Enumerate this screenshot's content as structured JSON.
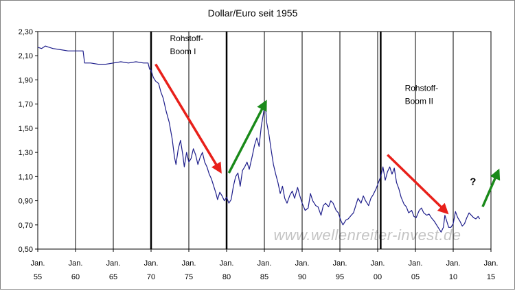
{
  "chart_data": {
    "type": "line",
    "title": "Dollar/Euro seit 1955",
    "xlabel": "",
    "ylabel": "",
    "xlim": [
      1955,
      2015
    ],
    "ylim": [
      0.5,
      2.3
    ],
    "grid": {
      "vertical": true,
      "horizontal": false
    },
    "y_ticks": [
      "0,50",
      "0,70",
      "0,90",
      "1,10",
      "1,30",
      "1,50",
      "1,70",
      "1,90",
      "2,10",
      "2,30"
    ],
    "x_ticks": [
      {
        "year": 1955,
        "line1": "Jan.",
        "line2": "55"
      },
      {
        "year": 1960,
        "line1": "Jan.",
        "line2": "60"
      },
      {
        "year": 1965,
        "line1": "Jan.",
        "line2": "65"
      },
      {
        "year": 1970,
        "line1": "Jan.",
        "line2": "70"
      },
      {
        "year": 1975,
        "line1": "Jan.",
        "line2": "75"
      },
      {
        "year": 1980,
        "line1": "Jan.",
        "line2": "80"
      },
      {
        "year": 1985,
        "line1": "Jan.",
        "line2": "85"
      },
      {
        "year": 1990,
        "line1": "Jan.",
        "line2": "90"
      },
      {
        "year": 1995,
        "line1": "Jan.",
        "line2": "95"
      },
      {
        "year": 2000,
        "line1": "Jan.",
        "line2": "00"
      },
      {
        "year": 2005,
        "line1": "Jan.",
        "line2": "05"
      },
      {
        "year": 2010,
        "line1": "Jan.",
        "line2": "10"
      },
      {
        "year": 2015,
        "line1": "Jan.",
        "line2": "15"
      }
    ],
    "series": [
      {
        "color": "#1c1c8a",
        "points": [
          [
            1955.0,
            2.17
          ],
          [
            1955.5,
            2.16
          ],
          [
            1956.0,
            2.18
          ],
          [
            1956.5,
            2.17
          ],
          [
            1957.0,
            2.16
          ],
          [
            1958.0,
            2.15
          ],
          [
            1959.0,
            2.14
          ],
          [
            1960.0,
            2.14
          ],
          [
            1961.0,
            2.14
          ],
          [
            1961.2,
            2.04
          ],
          [
            1962.0,
            2.04
          ],
          [
            1963.0,
            2.03
          ],
          [
            1964.0,
            2.03
          ],
          [
            1965.0,
            2.04
          ],
          [
            1966.0,
            2.05
          ],
          [
            1967.0,
            2.04
          ],
          [
            1968.0,
            2.05
          ],
          [
            1969.0,
            2.04
          ],
          [
            1969.6,
            2.04
          ],
          [
            1969.8,
            1.99
          ],
          [
            1970.0,
            1.98
          ],
          [
            1970.3,
            1.92
          ],
          [
            1970.6,
            1.89
          ],
          [
            1971.0,
            1.87
          ],
          [
            1971.3,
            1.8
          ],
          [
            1971.6,
            1.75
          ],
          [
            1972.0,
            1.64
          ],
          [
            1972.4,
            1.55
          ],
          [
            1972.8,
            1.41
          ],
          [
            1973.1,
            1.26
          ],
          [
            1973.3,
            1.2
          ],
          [
            1973.6,
            1.33
          ],
          [
            1973.9,
            1.4
          ],
          [
            1974.2,
            1.28
          ],
          [
            1974.4,
            1.18
          ],
          [
            1974.7,
            1.3
          ],
          [
            1975.0,
            1.22
          ],
          [
            1975.3,
            1.25
          ],
          [
            1975.6,
            1.33
          ],
          [
            1975.9,
            1.28
          ],
          [
            1976.2,
            1.2
          ],
          [
            1976.5,
            1.26
          ],
          [
            1976.8,
            1.3
          ],
          [
            1977.1,
            1.22
          ],
          [
            1977.4,
            1.18
          ],
          [
            1977.7,
            1.12
          ],
          [
            1978.0,
            1.08
          ],
          [
            1978.3,
            1.02
          ],
          [
            1978.6,
            0.96
          ],
          [
            1978.8,
            0.91
          ],
          [
            1979.1,
            0.97
          ],
          [
            1979.4,
            0.94
          ],
          [
            1979.7,
            0.9
          ],
          [
            1980.0,
            0.93
          ],
          [
            1980.3,
            0.88
          ],
          [
            1980.6,
            0.91
          ],
          [
            1980.9,
            1.02
          ],
          [
            1981.2,
            1.1
          ],
          [
            1981.5,
            1.13
          ],
          [
            1981.8,
            1.02
          ],
          [
            1982.1,
            1.15
          ],
          [
            1982.4,
            1.18
          ],
          [
            1982.7,
            1.22
          ],
          [
            1983.0,
            1.16
          ],
          [
            1983.4,
            1.27
          ],
          [
            1983.7,
            1.36
          ],
          [
            1984.0,
            1.42
          ],
          [
            1984.3,
            1.35
          ],
          [
            1984.6,
            1.52
          ],
          [
            1984.9,
            1.63
          ],
          [
            1985.1,
            1.72
          ],
          [
            1985.3,
            1.55
          ],
          [
            1985.6,
            1.45
          ],
          [
            1985.9,
            1.32
          ],
          [
            1986.2,
            1.2
          ],
          [
            1986.5,
            1.12
          ],
          [
            1986.8,
            1.05
          ],
          [
            1987.1,
            0.96
          ],
          [
            1987.4,
            1.02
          ],
          [
            1987.7,
            0.92
          ],
          [
            1988.0,
            0.88
          ],
          [
            1988.4,
            0.95
          ],
          [
            1988.7,
            0.98
          ],
          [
            1989.0,
            0.92
          ],
          [
            1989.4,
            1.01
          ],
          [
            1989.7,
            0.94
          ],
          [
            1990.0,
            0.88
          ],
          [
            1990.4,
            0.82
          ],
          [
            1990.8,
            0.84
          ],
          [
            1991.1,
            0.96
          ],
          [
            1991.4,
            0.9
          ],
          [
            1991.8,
            0.86
          ],
          [
            1992.1,
            0.85
          ],
          [
            1992.5,
            0.78
          ],
          [
            1992.8,
            0.86
          ],
          [
            1993.1,
            0.88
          ],
          [
            1993.5,
            0.85
          ],
          [
            1993.8,
            0.9
          ],
          [
            1994.1,
            0.88
          ],
          [
            1994.5,
            0.82
          ],
          [
            1994.8,
            0.8
          ],
          [
            1995.1,
            0.74
          ],
          [
            1995.4,
            0.7
          ],
          [
            1995.8,
            0.74
          ],
          [
            1996.1,
            0.75
          ],
          [
            1996.5,
            0.78
          ],
          [
            1996.8,
            0.8
          ],
          [
            1997.1,
            0.86
          ],
          [
            1997.4,
            0.92
          ],
          [
            1997.8,
            0.88
          ],
          [
            1998.1,
            0.94
          ],
          [
            1998.4,
            0.9
          ],
          [
            1998.8,
            0.86
          ],
          [
            1999.1,
            0.92
          ],
          [
            1999.4,
            0.95
          ],
          [
            1999.8,
            1.0
          ],
          [
            2000.1,
            1.05
          ],
          [
            2000.4,
            1.1
          ],
          [
            2000.7,
            1.18
          ],
          [
            2001.0,
            1.07
          ],
          [
            2001.3,
            1.14
          ],
          [
            2001.6,
            1.18
          ],
          [
            2001.9,
            1.12
          ],
          [
            2002.2,
            1.17
          ],
          [
            2002.5,
            1.05
          ],
          [
            2002.8,
            1.0
          ],
          [
            2003.1,
            0.93
          ],
          [
            2003.5,
            0.87
          ],
          [
            2003.8,
            0.85
          ],
          [
            2004.1,
            0.8
          ],
          [
            2004.5,
            0.82
          ],
          [
            2004.8,
            0.77
          ],
          [
            2005.1,
            0.76
          ],
          [
            2005.5,
            0.82
          ],
          [
            2005.8,
            0.84
          ],
          [
            2006.1,
            0.8
          ],
          [
            2006.5,
            0.78
          ],
          [
            2006.8,
            0.79
          ],
          [
            2007.1,
            0.76
          ],
          [
            2007.5,
            0.73
          ],
          [
            2007.8,
            0.7
          ],
          [
            2008.1,
            0.67
          ],
          [
            2008.4,
            0.64
          ],
          [
            2008.7,
            0.68
          ],
          [
            2008.9,
            0.78
          ],
          [
            2009.1,
            0.74
          ],
          [
            2009.4,
            0.68
          ],
          [
            2009.7,
            0.68
          ],
          [
            2010.0,
            0.71
          ],
          [
            2010.3,
            0.81
          ],
          [
            2010.6,
            0.76
          ],
          [
            2010.9,
            0.73
          ],
          [
            2011.2,
            0.69
          ],
          [
            2011.5,
            0.71
          ],
          [
            2011.8,
            0.76
          ],
          [
            2012.1,
            0.8
          ],
          [
            2012.4,
            0.78
          ],
          [
            2012.7,
            0.76
          ],
          [
            2013.0,
            0.75
          ],
          [
            2013.3,
            0.77
          ],
          [
            2013.5,
            0.75
          ]
        ]
      }
    ],
    "boundaries": [
      1970,
      1980,
      2000.4
    ],
    "annotations": [
      {
        "line1": "Rohstoff-",
        "line2": "Boom I",
        "x": 1972.5,
        "y": 2.22
      },
      {
        "line1": "Rohstoff-",
        "line2": "Boom II",
        "x": 2003.6,
        "y": 1.81
      }
    ],
    "arrows": [
      {
        "color": "#e8201a",
        "x1": 1970.6,
        "y1": 2.03,
        "x2": 1979.2,
        "y2": 1.14
      },
      {
        "color": "#1a8a1a",
        "x1": 1980.3,
        "y1": 1.13,
        "x2": 1985.2,
        "y2": 1.72
      },
      {
        "color": "#e8201a",
        "x1": 2001.3,
        "y1": 1.28,
        "x2": 2009.2,
        "y2": 0.8
      },
      {
        "color": "#1a8a1a",
        "x1": 2013.9,
        "y1": 0.85,
        "x2": 2016.0,
        "y2": 1.15
      }
    ],
    "question_mark": {
      "text": "?",
      "x": 2012.2,
      "y": 1.03
    },
    "watermark": "www.wellenreiter-invest.de"
  }
}
